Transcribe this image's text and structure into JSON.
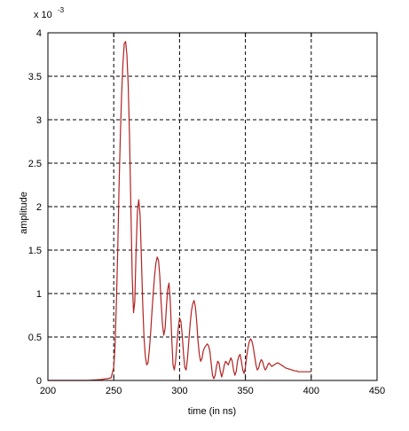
{
  "chart_data": {
    "type": "line",
    "xlabel": "time (in ns)",
    "ylabel": "amplitude",
    "y_scale_label": "x 10",
    "y_scale_exponent": "-3",
    "xlim": [
      200,
      450
    ],
    "ylim": [
      0,
      4
    ],
    "x_ticks": [
      200,
      250,
      300,
      350,
      400,
      450
    ],
    "y_ticks": [
      0,
      0.5,
      1,
      1.5,
      2,
      2.5,
      3,
      3.5,
      4
    ],
    "x_tick_labels": [
      "200",
      "250",
      "300",
      "350",
      "400",
      "450"
    ],
    "y_tick_labels": [
      "0",
      "0.5",
      "1",
      "1.5",
      "2",
      "2.5",
      "3",
      "3.5",
      "4"
    ],
    "grid": true,
    "grid_style": "dashed",
    "line_color": "#b22222",
    "series": [
      {
        "x": [
          200,
          210,
          220,
          230,
          240,
          245,
          248,
          250,
          251,
          252,
          253,
          254,
          255,
          256,
          257,
          258,
          259,
          260,
          261,
          262,
          263,
          264,
          265,
          266,
          267,
          268,
          269,
          270,
          271,
          272,
          273,
          274,
          275,
          276,
          277,
          278,
          279,
          280,
          281,
          282,
          283,
          284,
          285,
          286,
          287,
          288,
          289,
          290,
          291,
          292,
          293,
          294,
          295,
          296,
          297,
          298,
          299,
          300,
          301,
          302,
          303,
          304,
          305,
          306,
          307,
          308,
          309,
          310,
          311,
          312,
          313,
          314,
          315,
          316,
          317,
          318,
          319,
          320,
          321,
          322,
          323,
          324,
          325,
          326,
          327,
          328,
          329,
          330,
          331,
          332,
          333,
          334,
          335,
          336,
          337,
          338,
          339,
          340,
          341,
          342,
          343,
          344,
          345,
          346,
          347,
          348,
          349,
          350,
          351,
          352,
          353,
          354,
          355,
          356,
          357,
          358,
          359,
          360,
          361,
          362,
          363,
          364,
          365,
          366,
          367,
          368,
          369,
          370,
          371,
          372,
          373,
          374,
          375,
          376,
          377,
          378,
          379,
          380,
          381,
          382,
          383,
          384,
          385,
          386,
          387,
          388,
          389,
          390,
          391,
          392,
          393,
          394,
          395,
          396,
          397,
          398,
          399,
          400
        ],
        "y": [
          0,
          0,
          0,
          0,
          0.01,
          0.02,
          0.03,
          0.15,
          0.4,
          0.9,
          1.5,
          2.2,
          2.8,
          3.3,
          3.65,
          3.88,
          3.9,
          3.75,
          3.4,
          2.8,
          2.0,
          1.2,
          0.78,
          0.9,
          1.5,
          1.95,
          2.08,
          1.9,
          1.4,
          0.9,
          0.5,
          0.28,
          0.18,
          0.2,
          0.35,
          0.55,
          0.78,
          1.0,
          1.2,
          1.35,
          1.42,
          1.38,
          1.2,
          0.9,
          0.65,
          0.52,
          0.6,
          0.85,
          1.05,
          1.12,
          0.9,
          0.5,
          0.18,
          0.12,
          0.22,
          0.42,
          0.6,
          0.72,
          0.68,
          0.52,
          0.3,
          0.15,
          0.12,
          0.25,
          0.45,
          0.65,
          0.8,
          0.88,
          0.92,
          0.85,
          0.68,
          0.45,
          0.3,
          0.22,
          0.25,
          0.34,
          0.38,
          0.4,
          0.42,
          0.4,
          0.34,
          0.2,
          0.06,
          0.02,
          0.06,
          0.16,
          0.22,
          0.2,
          0.1,
          0.04,
          0.1,
          0.18,
          0.22,
          0.2,
          0.18,
          0.22,
          0.26,
          0.22,
          0.12,
          0.06,
          0.1,
          0.22,
          0.28,
          0.3,
          0.22,
          0.12,
          0.08,
          0.15,
          0.28,
          0.38,
          0.45,
          0.48,
          0.45,
          0.38,
          0.28,
          0.18,
          0.12,
          0.14,
          0.2,
          0.24,
          0.22,
          0.16,
          0.12,
          0.14,
          0.18,
          0.2,
          0.18,
          0.16,
          0.17,
          0.18,
          0.19,
          0.2,
          0.2,
          0.19,
          0.18,
          0.17,
          0.16,
          0.15,
          0.14,
          0.14,
          0.13,
          0.13,
          0.12,
          0.12,
          0.11,
          0.11,
          0.11,
          0.1,
          0.1,
          0.1,
          0.1,
          0.1,
          0.1,
          0.1,
          0.1,
          0.1,
          0.1,
          0.1
        ]
      }
    ]
  }
}
